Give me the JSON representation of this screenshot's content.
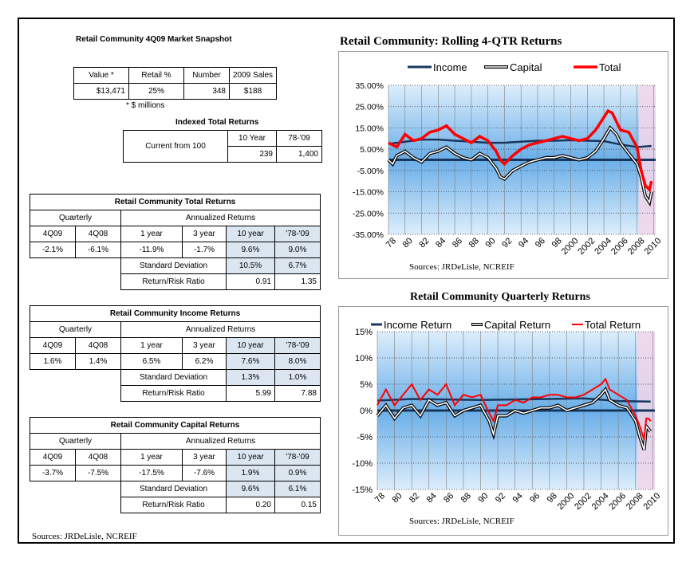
{
  "snapshot": {
    "title": "Retail Community 4Q09 Market Snapshot",
    "headers": [
      "Value *",
      "Retail %",
      "Number",
      "2009 Sales"
    ],
    "values": [
      "$13,471",
      "25%",
      "348",
      "$188"
    ],
    "footnote": "* $ millions"
  },
  "indexed": {
    "title": "Indexed Total Returns",
    "label": "Current from 100",
    "headers": [
      "10 Year",
      "78-'09"
    ],
    "values": [
      "239",
      "1,400"
    ]
  },
  "tables": [
    {
      "title": "Retail Community Total Returns",
      "quarterly_label": "Quarterly",
      "annualized_label": "Annualized Returns",
      "headers": [
        "4Q09",
        "4Q08",
        "1 year",
        "3 year",
        "10 year",
        "'78-'09"
      ],
      "values": [
        "-2.1%",
        "-6.1%",
        "-11.9%",
        "-1.7%",
        "9.6%",
        "9.0%"
      ],
      "sd_label": "Standard Deviation",
      "sd_values": [
        "10.5%",
        "6.7%"
      ],
      "rr_label": "Return/Risk Ratio",
      "rr_values": [
        "0.91",
        "1.35"
      ]
    },
    {
      "title": "Retail Community Income Returns",
      "quarterly_label": "Quarterly",
      "annualized_label": "Annualized Returns",
      "headers": [
        "4Q09",
        "4Q08",
        "1 year",
        "3 year",
        "10 year",
        "'78-'09"
      ],
      "values": [
        "1.6%",
        "1.4%",
        "6.5%",
        "6.2%",
        "7.6%",
        "8.0%"
      ],
      "sd_label": "Standard Deviation",
      "sd_values": [
        "1.3%",
        "1.0%"
      ],
      "rr_label": "Return/Risk Ratio",
      "rr_values": [
        "5.99",
        "7.88"
      ]
    },
    {
      "title": "Retail Community Capital Returns",
      "quarterly_label": "Quarterly",
      "annualized_label": "Annualized Returns",
      "headers": [
        "4Q09",
        "4Q08",
        "1 year",
        "3 year",
        "10 year",
        "'78-'09"
      ],
      "values": [
        "-3.7%",
        "-7.5%",
        "-17.5%",
        "-7.6%",
        "1.9%",
        "0.9%"
      ],
      "sd_label": "Standard Deviation",
      "sd_values": [
        "9.6%",
        "6.1%"
      ],
      "rr_label": "Return/Risk Ratio",
      "rr_values": [
        "0.20",
        "0.15"
      ]
    }
  ],
  "sources_left": "Sources: JRDeLisle, NCREIF",
  "chart_data": [
    {
      "type": "line",
      "title": "Retail Community:  Rolling 4-QTR Returns",
      "source": "Sources: JRDeLisle, NCREIF",
      "ylim": [
        -35,
        35
      ],
      "yticks": [
        "35.00%",
        "25.00%",
        "15.00%",
        "5.00%",
        "-5.00%",
        "-15.00%",
        "-25.00%",
        "-35.00%"
      ],
      "xticks": [
        "78",
        "80",
        "82",
        "84",
        "86",
        "88",
        "90",
        "92",
        "94",
        "96",
        "98",
        "2000",
        "2002",
        "2004",
        "2006",
        "2008",
        "2010"
      ],
      "legend": [
        "Income",
        "Capital",
        "Total"
      ],
      "colors": {
        "income": "#17375e",
        "capital": "#000000",
        "total": "#ff0000"
      },
      "series": [
        {
          "name": "Income",
          "x": [
            1978,
            1980,
            1982,
            1984,
            1986,
            1988,
            1990,
            1992,
            1994,
            1996,
            1998,
            2000,
            2002,
            2004,
            2006,
            2008,
            2009.75
          ],
          "values": [
            7.5,
            8.5,
            9.5,
            9.5,
            9,
            8.5,
            8,
            8,
            8.5,
            9,
            9,
            9.2,
            9,
            8.8,
            7.2,
            6,
            6.5
          ]
        },
        {
          "name": "Capital",
          "x": [
            1978,
            1978.5,
            1979,
            1980,
            1981,
            1982,
            1983,
            1984,
            1985,
            1986,
            1987,
            1988,
            1989,
            1990,
            1991,
            1991.5,
            1992,
            1993,
            1994,
            1995,
            1996,
            1997,
            1998,
            1999,
            2000,
            2001,
            2002,
            2003,
            2004,
            2004.75,
            2005.5,
            2006,
            2007,
            2008,
            2008.5,
            2009,
            2009.5,
            2009.75
          ],
          "values": [
            0,
            -2,
            2,
            4,
            1,
            -1,
            3,
            4,
            6,
            3,
            1,
            0,
            3,
            1,
            -4,
            -8,
            -9,
            -5,
            -3,
            -1,
            0,
            1,
            1,
            2,
            1,
            0,
            1,
            4,
            10,
            15,
            12,
            8,
            3,
            -2,
            -8,
            -17,
            -20,
            -15
          ]
        },
        {
          "name": "Total",
          "x": [
            1978,
            1979,
            1980,
            1981,
            1982,
            1983,
            1984,
            1985,
            1986,
            1987,
            1988,
            1989,
            1990,
            1991,
            1991.5,
            1992,
            1993,
            1994,
            1995,
            1996,
            1997,
            1998,
            1999,
            2000,
            2001,
            2002,
            2003,
            2004,
            2004.5,
            2005,
            2005.5,
            2006,
            2007,
            2008,
            2008.5,
            2009,
            2009.5,
            2009.75
          ],
          "values": [
            8,
            6,
            12,
            9,
            10,
            13,
            14,
            16,
            12,
            10,
            8,
            11,
            9,
            4,
            0,
            -2,
            2,
            5,
            7,
            8,
            9,
            10,
            11,
            10,
            9,
            10,
            14,
            20,
            23,
            22,
            18,
            14,
            13,
            6,
            -5,
            -12,
            -14,
            -10
          ]
        }
      ]
    },
    {
      "type": "line",
      "title": "Retail Community Quarterly Returns",
      "source": "Sources: JRDeLisle, NCREIF",
      "ylim": [
        -15,
        15
      ],
      "yticks": [
        "15%",
        "10%",
        "5%",
        "0%",
        "-5%",
        "-10%",
        "-15%"
      ],
      "xticks": [
        "78",
        "80",
        "82",
        "84",
        "86",
        "88",
        "90",
        "92",
        "94",
        "96",
        "98",
        "2000",
        "2002",
        "2004",
        "2006",
        "2008",
        "2010"
      ],
      "legend": [
        "Income Return",
        "Capital Return",
        "Total Return"
      ],
      "colors": {
        "income": "#17375e",
        "capital": "#000000",
        "total": "#ff0000"
      },
      "series": [
        {
          "name": "Income Return",
          "x": [
            1978,
            1982,
            1986,
            1990,
            1994,
            1998,
            2002,
            2006,
            2009.75
          ],
          "values": [
            1.9,
            2.2,
            2.1,
            2.0,
            2.1,
            2.2,
            2.3,
            1.8,
            1.7
          ]
        },
        {
          "name": "Capital Return",
          "x": [
            1978,
            1979,
            1980,
            1981,
            1982,
            1983,
            1984,
            1985,
            1986,
            1987,
            1988,
            1989,
            1990,
            1991,
            1991.5,
            1992,
            1993,
            1994,
            1995,
            1996,
            1997,
            1998,
            1999,
            2000,
            2001,
            2002,
            2003,
            2004,
            2004.5,
            2005,
            2006,
            2007,
            2008,
            2008.5,
            2009,
            2009.25,
            2009.5,
            2009.75
          ],
          "values": [
            -1,
            1,
            -1.5,
            0.5,
            1,
            -1,
            2,
            1,
            1.5,
            -1,
            0,
            0.5,
            1,
            -2,
            -4.5,
            -1,
            -1,
            0,
            -0.5,
            0,
            0.5,
            0.5,
            1,
            0,
            0.5,
            1,
            1.5,
            3,
            4,
            2,
            1,
            0.5,
            -2,
            -5,
            -7.5,
            -3,
            -3.5,
            -4
          ]
        },
        {
          "name": "Total Return",
          "x": [
            1978,
            1979,
            1980,
            1981,
            1982,
            1983,
            1984,
            1985,
            1986,
            1987,
            1988,
            1989,
            1990,
            1991,
            1991.5,
            1992,
            1993,
            1994,
            1995,
            1996,
            1997,
            1998,
            1999,
            2000,
            2001,
            2002,
            2003,
            2004,
            2004.5,
            2005,
            2006,
            2007,
            2008,
            2008.5,
            2009,
            2009.25,
            2009.5,
            2009.75
          ],
          "values": [
            1,
            4,
            1,
            3,
            5,
            2,
            4,
            3,
            5,
            1,
            3,
            2.5,
            3,
            -0.5,
            -2,
            1,
            1,
            2,
            1.5,
            2.5,
            2.5,
            3,
            3,
            2.5,
            2.5,
            3,
            4,
            5,
            6,
            4,
            3,
            2,
            -1,
            -3,
            -5.5,
            -1.5,
            -1.5,
            -2
          ]
        }
      ]
    }
  ]
}
